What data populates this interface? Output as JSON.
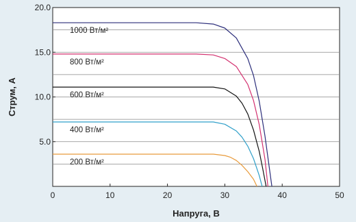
{
  "chart_data": {
    "type": "line",
    "xlabel": "Напруга, В",
    "ylabel": "Струм, А",
    "xlim": [
      0,
      50
    ],
    "ylim": [
      0,
      20
    ],
    "xticks": [
      0,
      10,
      20,
      30,
      40,
      50
    ],
    "yticks": [
      5,
      10,
      15,
      20
    ],
    "ytick_labels": [
      "5.0",
      "10.0",
      "15.0",
      "20.0"
    ],
    "grid": "horizontal",
    "series": [
      {
        "name": "1000 Вт/м²",
        "color": "#2b2d7a",
        "x": [
          0,
          25,
          28,
          30,
          32,
          34,
          35,
          36,
          37,
          37.6,
          38.2
        ],
        "y": [
          18.3,
          18.3,
          18.15,
          17.7,
          16.6,
          14.3,
          12.4,
          9.5,
          5.6,
          2.8,
          0
        ]
      },
      {
        "name": "800 Вт/м²",
        "color": "#d3306f",
        "x": [
          0,
          25,
          28,
          30,
          32,
          34,
          35,
          36,
          37,
          37.5
        ],
        "y": [
          14.8,
          14.8,
          14.7,
          14.3,
          13.4,
          11.4,
          9.6,
          6.9,
          3.0,
          0
        ]
      },
      {
        "name": "600 Вт/м²",
        "color": "#111111",
        "x": [
          0,
          28,
          30,
          32,
          33,
          34,
          35,
          36,
          36.6,
          37.2
        ],
        "y": [
          11.1,
          11.1,
          10.9,
          10.1,
          9.3,
          8.1,
          6.3,
          3.9,
          2.0,
          0
        ]
      },
      {
        "name": "400 Вт/м²",
        "color": "#2f9fc9",
        "x": [
          0,
          28,
          30,
          32,
          33,
          34,
          35,
          36,
          36.5
        ],
        "y": [
          7.2,
          7.2,
          6.95,
          6.2,
          5.5,
          4.5,
          3.1,
          1.2,
          0
        ]
      },
      {
        "name": "200 Вт/м²",
        "color": "#e89a3a",
        "x": [
          0,
          28,
          30,
          31,
          32,
          33,
          34,
          35,
          35.6
        ],
        "y": [
          3.6,
          3.6,
          3.45,
          3.25,
          2.9,
          2.35,
          1.65,
          0.8,
          0
        ]
      }
    ]
  }
}
